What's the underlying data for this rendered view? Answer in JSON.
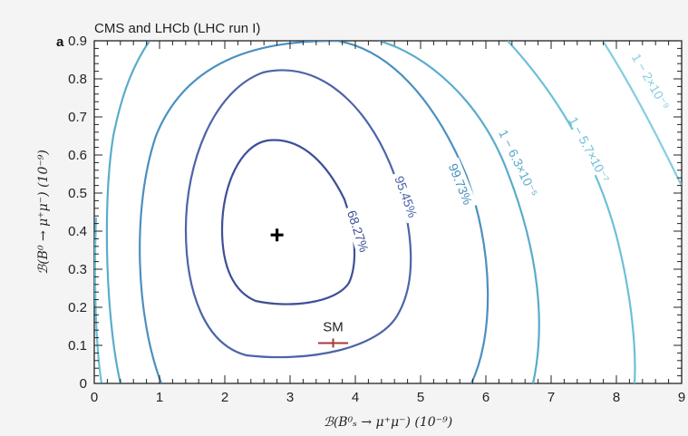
{
  "chart_data": {
    "type": "contour",
    "panel_label": "a",
    "title": "CMS and LHCb (LHC run I)",
    "xlabel": "ℬ(B⁰ₛ → μ⁺μ⁻) (10⁻⁹)",
    "ylabel": "ℬ(B⁰ → μ⁺μ⁻) (10⁻⁹)",
    "xlim": [
      0,
      9
    ],
    "ylim": [
      0,
      0.9
    ],
    "xticks": [
      "0",
      "1",
      "2",
      "3",
      "4",
      "5",
      "6",
      "7",
      "8",
      "9"
    ],
    "yticks": [
      "0",
      "0.1",
      "0.2",
      "0.3",
      "0.4",
      "0.5",
      "0.6",
      "0.7",
      "0.8",
      "0.9"
    ],
    "best_fit": {
      "x": 2.8,
      "y": 0.39
    },
    "sm_point": {
      "label": "SM",
      "x": 3.66,
      "y": 0.106,
      "x_err": 0.23,
      "color": "#a33a3a"
    },
    "contours": [
      {
        "label": "68.27%",
        "color": "#3f4f97",
        "points": [
          [
            2.75,
            0.39
          ],
          [
            2.75,
            0.39
          ]
        ]
      },
      {
        "label": "95.45%",
        "color": "#4c64a8"
      },
      {
        "label": "99.73%",
        "color": "#4a90bf"
      },
      {
        "label": "1 − 6.3×10⁻⁵",
        "color": "#5aaccb"
      },
      {
        "label": "1 − 5.7×10⁻⁷",
        "color": "#6cc0d7"
      },
      {
        "label": "1 − 2×10⁻⁹",
        "color": "#84cde0"
      }
    ],
    "grid": false,
    "legend": "none"
  }
}
